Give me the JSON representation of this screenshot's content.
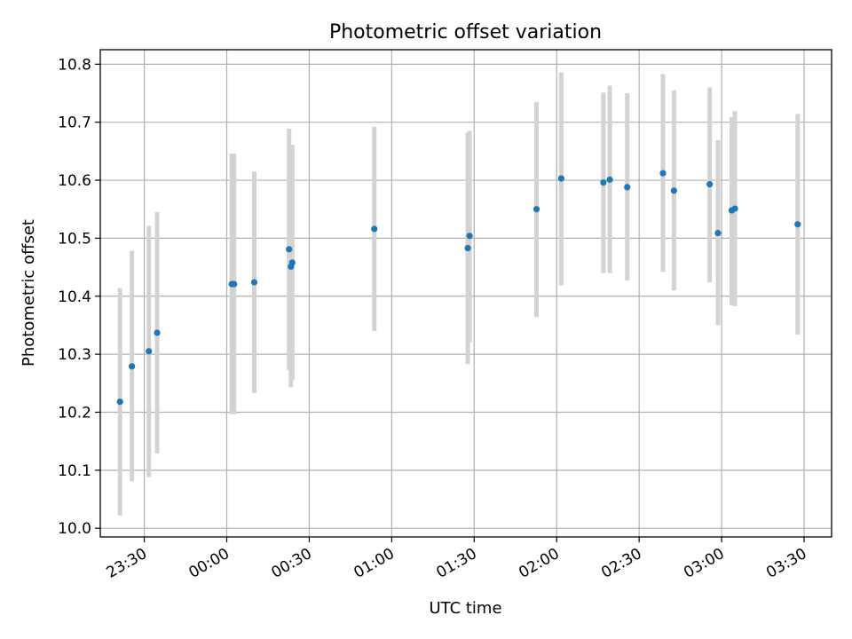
{
  "chart_data": {
    "type": "scatter",
    "title": "Photometric offset variation",
    "xlabel": "UTC time",
    "ylabel": "Photometric offset",
    "x_type": "time",
    "xlim": [
      "23:14",
      "03:40"
    ],
    "ylim": [
      9.985,
      10.825
    ],
    "x_ticks": [
      "23:30",
      "00:00",
      "00:30",
      "01:00",
      "01:30",
      "02:00",
      "02:30",
      "03:00",
      "03:30"
    ],
    "y_ticks": [
      "10.0",
      "10.1",
      "10.2",
      "10.3",
      "10.4",
      "10.5",
      "10.6",
      "10.7",
      "10.8"
    ],
    "grid": true,
    "legend": "none",
    "colors": {
      "point": "#1f77b4",
      "errorbar": "#d3d3d3",
      "grid": "#b0b0b0"
    },
    "series": [
      {
        "points": [
          {
            "x": "23:21:10",
            "y": 10.218,
            "ylow": 10.022,
            "yhigh": 10.414
          },
          {
            "x": "23:25:30",
            "y": 10.279,
            "ylow": 10.081,
            "yhigh": 10.478
          },
          {
            "x": "23:31:40",
            "y": 10.305,
            "ylow": 10.088,
            "yhigh": 10.521
          },
          {
            "x": "23:34:40",
            "y": 10.337,
            "ylow": 10.129,
            "yhigh": 10.545
          },
          {
            "x": "00:01:50",
            "y": 10.421,
            "ylow": 10.197,
            "yhigh": 10.646
          },
          {
            "x": "00:02:40",
            "y": 10.421,
            "ylow": 10.197,
            "yhigh": 10.646
          },
          {
            "x": "00:10:00",
            "y": 10.424,
            "ylow": 10.233,
            "yhigh": 10.615
          },
          {
            "x": "00:22:40",
            "y": 10.481,
            "ylow": 10.273,
            "yhigh": 10.689
          },
          {
            "x": "00:23:20",
            "y": 10.451,
            "ylow": 10.243,
            "yhigh": 10.659
          },
          {
            "x": "00:23:50",
            "y": 10.458,
            "ylow": 10.255,
            "yhigh": 10.661
          },
          {
            "x": "00:53:40",
            "y": 10.516,
            "ylow": 10.34,
            "yhigh": 10.692
          },
          {
            "x": "01:27:40",
            "y": 10.483,
            "ylow": 10.283,
            "yhigh": 10.682
          },
          {
            "x": "01:28:20",
            "y": 10.504,
            "ylow": 10.321,
            "yhigh": 10.685
          },
          {
            "x": "01:52:40",
            "y": 10.55,
            "ylow": 10.364,
            "yhigh": 10.735
          },
          {
            "x": "02:01:40",
            "y": 10.603,
            "ylow": 10.419,
            "yhigh": 10.786
          },
          {
            "x": "02:17:00",
            "y": 10.596,
            "ylow": 10.44,
            "yhigh": 10.751
          },
          {
            "x": "02:19:20",
            "y": 10.601,
            "ylow": 10.44,
            "yhigh": 10.763
          },
          {
            "x": "02:25:40",
            "y": 10.588,
            "ylow": 10.427,
            "yhigh": 10.75
          },
          {
            "x": "02:38:40",
            "y": 10.612,
            "ylow": 10.442,
            "yhigh": 10.783
          },
          {
            "x": "02:42:40",
            "y": 10.582,
            "ylow": 10.41,
            "yhigh": 10.755
          },
          {
            "x": "02:55:40",
            "y": 10.593,
            "ylow": 10.424,
            "yhigh": 10.76
          },
          {
            "x": "02:58:40",
            "y": 10.509,
            "ylow": 10.35,
            "yhigh": 10.669
          },
          {
            "x": "03:03:40",
            "y": 10.548,
            "ylow": 10.385,
            "yhigh": 10.709
          },
          {
            "x": "03:04:50",
            "y": 10.551,
            "ylow": 10.383,
            "yhigh": 10.719
          },
          {
            "x": "03:27:40",
            "y": 10.524,
            "ylow": 10.334,
            "yhigh": 10.714
          }
        ]
      }
    ]
  }
}
